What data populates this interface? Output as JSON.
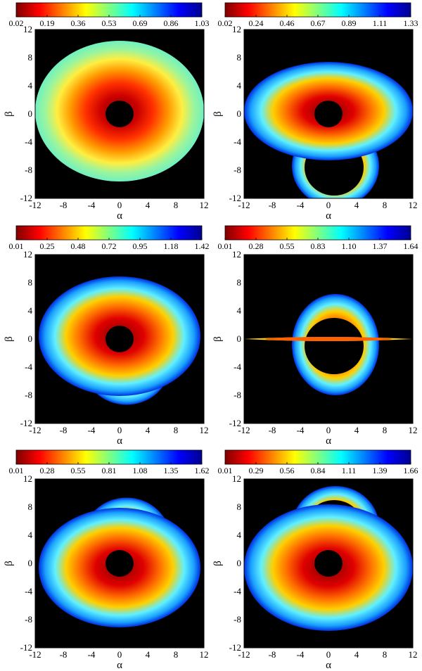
{
  "colormap": [
    "#7f0000",
    "#ff0000",
    "#ff8000",
    "#ffff00",
    "#80ff80",
    "#00ffff",
    "#0080ff",
    "#0000ff",
    "#00008f"
  ],
  "chart_data": [
    {
      "type": "heatmap",
      "xlabel": "α",
      "ylabel": "β",
      "xlim": [
        -12,
        12
      ],
      "ylim": [
        -12,
        12
      ],
      "xticks": [
        "-12",
        "-8",
        "-4",
        "0",
        "4",
        "8",
        "12"
      ],
      "yticks": [
        "12",
        "8",
        "4",
        "0",
        "-4",
        "-8",
        "-12"
      ],
      "colorbar": {
        "ticks": [
          "0.02",
          "0.19",
          "0.36",
          "0.53",
          "0.69",
          "0.86",
          "1.03"
        ],
        "range": [
          0.02,
          1.03
        ]
      },
      "background": "#000000",
      "disk": {
        "center": [
          0,
          0
        ],
        "outer": [
          12.0,
          10.0
        ],
        "inner": [
          2.0,
          2.0
        ],
        "drop": 0,
        "width": 0,
        "behind": false,
        "flip": false
      }
    },
    {
      "type": "heatmap",
      "xlabel": "α",
      "ylabel": "β",
      "xlim": [
        -12,
        12
      ],
      "ylim": [
        -12,
        12
      ],
      "xticks": [
        "-12",
        "-8",
        "-4",
        "0",
        "4",
        "8",
        "12"
      ],
      "yticks": [
        "12",
        "8",
        "4",
        "0",
        "-4",
        "-8",
        "-12"
      ],
      "colorbar": {
        "ticks": [
          "0.02",
          "0.24",
          "0.46",
          "0.67",
          "0.89",
          "1.11",
          "1.33"
        ],
        "range": [
          0.02,
          1.33
        ]
      },
      "background": "#000000",
      "disk": {
        "center": [
          0,
          0
        ],
        "outer": [
          12.0,
          7.0
        ],
        "inner": [
          2.0,
          2.0
        ],
        "drop": -4.5,
        "width": 12,
        "behind": true,
        "flip": false
      }
    },
    {
      "type": "heatmap",
      "xlabel": "α",
      "ylabel": "β",
      "xlim": [
        -12,
        12
      ],
      "ylim": [
        -12,
        12
      ],
      "xticks": [
        "-12",
        "-8",
        "-4",
        "0",
        "4",
        "8",
        "12"
      ],
      "yticks": [
        "12",
        "8",
        "4",
        "0",
        "-4",
        "-8",
        "-12"
      ],
      "colorbar": {
        "ticks": [
          "0.01",
          "0.25",
          "0.48",
          "0.72",
          "0.95",
          "1.18",
          "1.42"
        ],
        "range": [
          0.01,
          1.42
        ]
      },
      "background": "#000000",
      "disk": {
        "center": [
          0,
          0
        ],
        "outer": [
          11.5,
          8.5
        ],
        "inner": [
          2.0,
          2.0
        ],
        "drop": -2.5,
        "width": 5,
        "behind": true,
        "flip": false
      }
    },
    {
      "type": "heatmap",
      "xlabel": "α",
      "ylabel": "β",
      "xlim": [
        -12,
        12
      ],
      "ylim": [
        -12,
        12
      ],
      "xticks": [
        "-12",
        "-8",
        "-4",
        "0",
        "4",
        "8",
        "12"
      ],
      "yticks": [
        "12",
        "8",
        "4",
        "0",
        "-4",
        "-8",
        "-12"
      ],
      "colorbar": {
        "ticks": [
          "0.01",
          "0.28",
          "0.55",
          "0.83",
          "1.10",
          "1.37",
          "1.64"
        ],
        "range": [
          0.01,
          1.64
        ]
      },
      "background": "#000000",
      "disk": {
        "center": [
          0,
          0
        ],
        "outer": [
          12.0,
          0.6
        ],
        "inner": [
          2.0,
          2.0
        ],
        "drop": 0,
        "width": 0,
        "behind": true,
        "flip": false
      }
    },
    {
      "type": "heatmap",
      "xlabel": "α",
      "ylabel": "β",
      "xlim": [
        -12,
        12
      ],
      "ylim": [
        -12,
        12
      ],
      "xticks": [
        "-12",
        "-8",
        "-4",
        "0",
        "4",
        "8",
        "12"
      ],
      "yticks": [
        "12",
        "8",
        "4",
        "0",
        "-4",
        "-8",
        "-12"
      ],
      "colorbar": {
        "ticks": [
          "0.01",
          "0.28",
          "0.55",
          "0.81",
          "1.08",
          "1.35",
          "1.62"
        ],
        "range": [
          0.01,
          1.62
        ]
      },
      "background": "#000000",
      "disk": {
        "center": [
          0,
          0
        ],
        "outer": [
          11.5,
          8.5
        ],
        "inner": [
          2.0,
          2.0
        ],
        "drop": 2.5,
        "width": 5,
        "behind": true,
        "flip": true
      }
    },
    {
      "type": "heatmap",
      "xlabel": "α",
      "ylabel": "β",
      "xlim": [
        -12,
        12
      ],
      "ylim": [
        -12,
        12
      ],
      "xticks": [
        "-12",
        "-8",
        "-4",
        "0",
        "4",
        "8",
        "12"
      ],
      "yticks": [
        "12",
        "8",
        "4",
        "0",
        "-4",
        "-8",
        "-12"
      ],
      "colorbar": {
        "ticks": [
          "0.01",
          "0.29",
          "0.56",
          "0.84",
          "1.11",
          "1.39",
          "1.66"
        ],
        "range": [
          0.01,
          1.66
        ]
      },
      "background": "#000000",
      "disk": {
        "center": [
          0,
          0
        ],
        "outer": [
          12.0,
          9.0
        ],
        "inner": [
          2.0,
          2.0
        ],
        "drop": 4.5,
        "width": 8,
        "behind": true,
        "flip": true
      }
    }
  ]
}
